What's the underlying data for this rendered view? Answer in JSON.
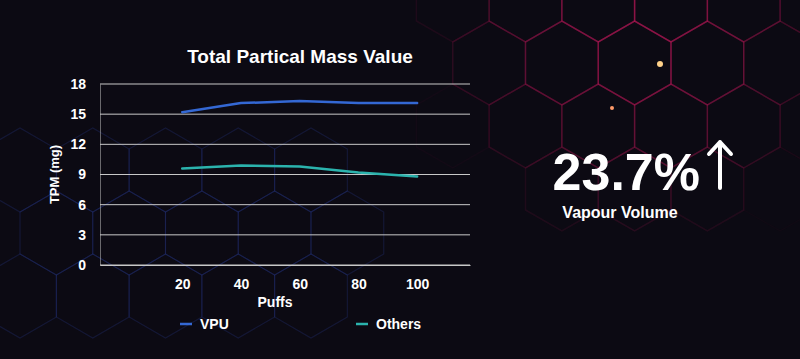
{
  "chart_data": {
    "type": "line",
    "title": "Total Partical Mass Value",
    "x_label": "Puffs",
    "y_label": "TPM (mg)",
    "x": [
      20,
      40,
      60,
      80,
      100
    ],
    "series": [
      {
        "name": "VPU",
        "color": "#3468d4",
        "values": [
          15.2,
          16.1,
          16.3,
          16.1,
          16.1
        ]
      },
      {
        "name": "Others",
        "color": "#2bb3ad",
        "values": [
          9.6,
          9.9,
          9.8,
          9.2,
          8.8
        ]
      }
    ],
    "xlim": [
      -8,
      118
    ],
    "xticks": [
      20,
      40,
      60,
      80,
      100
    ],
    "ylim": [
      0,
      18
    ],
    "yticks": [
      0,
      3,
      6,
      9,
      12,
      15,
      18
    ],
    "grid": true,
    "legend": "bottom",
    "annotations": [
      {
        "text": "23.7%"
      },
      {
        "text": "Vapour Volume"
      }
    ]
  }
}
